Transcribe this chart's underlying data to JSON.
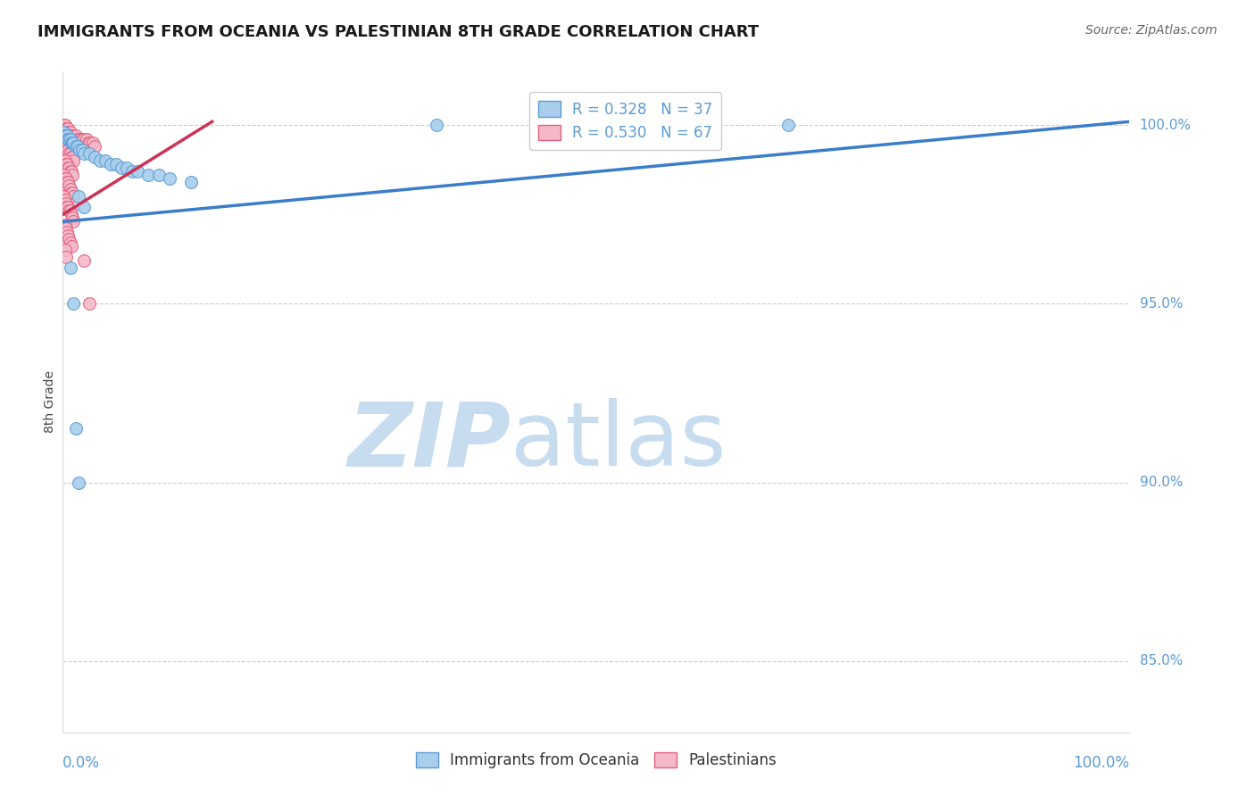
{
  "title": "IMMIGRANTS FROM OCEANIA VS PALESTINIAN 8TH GRADE CORRELATION CHART",
  "source": "Source: ZipAtlas.com",
  "ylabel": "8th Grade",
  "legend_blue": {
    "R": 0.328,
    "N": 37,
    "label": "Immigrants from Oceania"
  },
  "legend_pink": {
    "R": 0.53,
    "N": 67,
    "label": "Palestinians"
  },
  "blue_scatter": [
    [
      0.001,
      0.998
    ],
    [
      0.002,
      0.997
    ],
    [
      0.003,
      0.997
    ],
    [
      0.004,
      0.997
    ],
    [
      0.005,
      0.996
    ],
    [
      0.006,
      0.996
    ],
    [
      0.007,
      0.996
    ],
    [
      0.008,
      0.995
    ],
    [
      0.009,
      0.995
    ],
    [
      0.01,
      0.995
    ],
    [
      0.012,
      0.994
    ],
    [
      0.014,
      0.994
    ],
    [
      0.016,
      0.993
    ],
    [
      0.018,
      0.993
    ],
    [
      0.02,
      0.992
    ],
    [
      0.025,
      0.992
    ],
    [
      0.03,
      0.991
    ],
    [
      0.035,
      0.99
    ],
    [
      0.04,
      0.99
    ],
    [
      0.045,
      0.989
    ],
    [
      0.05,
      0.989
    ],
    [
      0.055,
      0.988
    ],
    [
      0.06,
      0.988
    ],
    [
      0.065,
      0.987
    ],
    [
      0.07,
      0.987
    ],
    [
      0.08,
      0.986
    ],
    [
      0.09,
      0.986
    ],
    [
      0.1,
      0.985
    ],
    [
      0.12,
      0.984
    ],
    [
      0.015,
      0.98
    ],
    [
      0.02,
      0.977
    ],
    [
      0.35,
      1.0
    ],
    [
      0.68,
      1.0
    ],
    [
      0.007,
      0.96
    ],
    [
      0.01,
      0.95
    ],
    [
      0.012,
      0.915
    ],
    [
      0.015,
      0.9
    ]
  ],
  "pink_scatter": [
    [
      0.001,
      1.0
    ],
    [
      0.002,
      1.0
    ],
    [
      0.003,
      0.999
    ],
    [
      0.004,
      0.999
    ],
    [
      0.005,
      0.999
    ],
    [
      0.006,
      0.998
    ],
    [
      0.007,
      0.998
    ],
    [
      0.008,
      0.997
    ],
    [
      0.009,
      0.997
    ],
    [
      0.01,
      0.997
    ],
    [
      0.012,
      0.997
    ],
    [
      0.014,
      0.996
    ],
    [
      0.016,
      0.996
    ],
    [
      0.018,
      0.996
    ],
    [
      0.02,
      0.996
    ],
    [
      0.022,
      0.996
    ],
    [
      0.024,
      0.995
    ],
    [
      0.026,
      0.995
    ],
    [
      0.028,
      0.995
    ],
    [
      0.03,
      0.994
    ],
    [
      0.003,
      0.994
    ],
    [
      0.004,
      0.993
    ],
    [
      0.005,
      0.993
    ],
    [
      0.006,
      0.992
    ],
    [
      0.007,
      0.992
    ],
    [
      0.008,
      0.991
    ],
    [
      0.009,
      0.991
    ],
    [
      0.01,
      0.99
    ],
    [
      0.002,
      0.99
    ],
    [
      0.003,
      0.989
    ],
    [
      0.004,
      0.989
    ],
    [
      0.005,
      0.988
    ],
    [
      0.006,
      0.988
    ],
    [
      0.007,
      0.987
    ],
    [
      0.008,
      0.987
    ],
    [
      0.009,
      0.986
    ],
    [
      0.001,
      0.986
    ],
    [
      0.002,
      0.985
    ],
    [
      0.003,
      0.985
    ],
    [
      0.004,
      0.984
    ],
    [
      0.005,
      0.984
    ],
    [
      0.006,
      0.983
    ],
    [
      0.007,
      0.982
    ],
    [
      0.008,
      0.981
    ],
    [
      0.009,
      0.981
    ],
    [
      0.01,
      0.98
    ],
    [
      0.001,
      0.98
    ],
    [
      0.002,
      0.979
    ],
    [
      0.003,
      0.978
    ],
    [
      0.004,
      0.977
    ],
    [
      0.005,
      0.977
    ],
    [
      0.006,
      0.976
    ],
    [
      0.007,
      0.976
    ],
    [
      0.008,
      0.975
    ],
    [
      0.009,
      0.974
    ],
    [
      0.01,
      0.973
    ],
    [
      0.002,
      0.972
    ],
    [
      0.003,
      0.971
    ],
    [
      0.004,
      0.97
    ],
    [
      0.005,
      0.969
    ],
    [
      0.006,
      0.968
    ],
    [
      0.007,
      0.967
    ],
    [
      0.008,
      0.966
    ],
    [
      0.002,
      0.965
    ],
    [
      0.003,
      0.963
    ],
    [
      0.02,
      0.962
    ],
    [
      0.025,
      0.95
    ]
  ],
  "blue_line_x": [
    0.0,
    1.0
  ],
  "blue_line_y": [
    0.973,
    1.001
  ],
  "pink_line_x": [
    0.0,
    0.14
  ],
  "pink_line_y": [
    0.975,
    1.001
  ],
  "xlim": [
    0.0,
    1.0
  ],
  "ylim": [
    0.83,
    1.015
  ],
  "yticks": [
    0.85,
    0.9,
    0.95,
    1.0
  ],
  "ytick_labels": [
    "85.0%",
    "90.0%",
    "95.0%",
    "100.0%"
  ],
  "scatter_size": 100,
  "blue_color": "#A8CEEC",
  "pink_color": "#F4B8C8",
  "blue_edge_color": "#5B9BD5",
  "pink_edge_color": "#E06080",
  "blue_line_color": "#3A7DC9",
  "pink_line_color": "#CC3355",
  "grid_color": "#CCCCCC",
  "axis_label_color": "#5B9BD5",
  "watermark_zip_color": "#C8DCF0",
  "watermark_atlas_color": "#C8DCF0",
  "background": "#FFFFFF"
}
